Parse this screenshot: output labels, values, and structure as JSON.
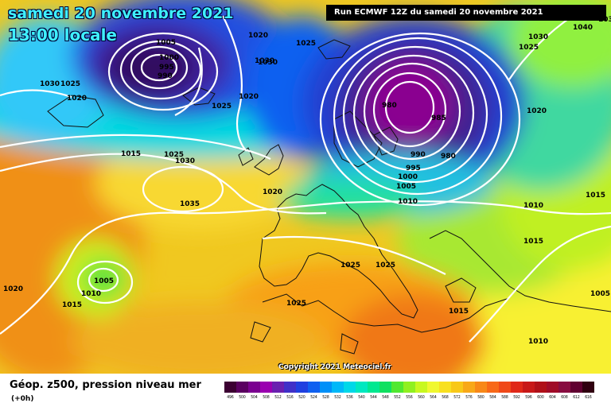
{
  "header": {
    "date_line": "samedi 20 novembre 2021",
    "time_line": "13:00 locale",
    "run_info": "Run ECMWF 12Z du samedi 20 novembre 2021"
  },
  "copyright": "Copyright 2021 Meteociel.fr",
  "legend": {
    "title": "Géop. z500, pression niveau mer",
    "subtitle": "(+0h)",
    "scale_values": [
      "496",
      "500",
      "504",
      "508",
      "512",
      "516",
      "520",
      "524",
      "528",
      "532",
      "536",
      "540",
      "544",
      "548",
      "552",
      "556",
      "560",
      "564",
      "568",
      "572",
      "576",
      "580",
      "584",
      "588",
      "592",
      "596",
      "600",
      "604",
      "608",
      "612",
      "616"
    ],
    "scale_colors": [
      "#3c0032",
      "#5a0060",
      "#7a0090",
      "#9a00b0",
      "#6a20b0",
      "#4030c8",
      "#2040e0",
      "#1060f0",
      "#0090f8",
      "#00b8f8",
      "#00d8e8",
      "#00e8c0",
      "#00e890",
      "#10e060",
      "#50e830",
      "#90f020",
      "#c8f820",
      "#f0f830",
      "#f8e020",
      "#f8c818",
      "#f8a818",
      "#f88818",
      "#f86818",
      "#f04818",
      "#e02818",
      "#c81818",
      "#b01018",
      "#a00c28",
      "#880c40",
      "#600030",
      "#300010"
    ]
  },
  "pressure_labels": [
    "1005",
    "1000",
    "995",
    "990",
    "1020",
    "1025",
    "1030",
    "1035",
    "1040",
    "1030",
    "1025",
    "1020",
    "1025",
    "1020",
    "1030",
    "1025",
    "1015",
    "1025",
    "1030",
    "1035",
    "1020",
    "1005",
    "1010",
    "1015",
    "1020",
    "980",
    "985",
    "990",
    "995",
    "1000",
    "1005",
    "1010",
    "980",
    "1020",
    "1015",
    "1010",
    "1015",
    "1025",
    "1025",
    "1025",
    "1015",
    "1010",
    "1005",
    "1030"
  ],
  "icons": {
    "map": "weather-map",
    "color_scale": "geopotential-color-scale"
  }
}
